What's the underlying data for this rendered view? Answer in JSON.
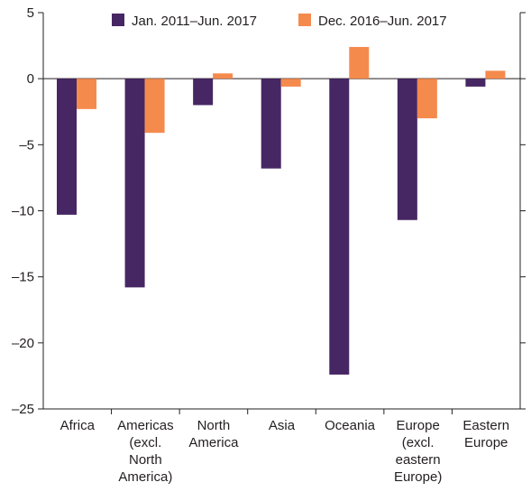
{
  "chart_data": {
    "type": "bar",
    "title": "",
    "xlabel": "",
    "ylabel": "",
    "ylim": [
      -25,
      5
    ],
    "yticks": [
      5,
      0,
      -5,
      -10,
      -15,
      -20,
      -25
    ],
    "ytick_labels": [
      "5",
      "0",
      "–5",
      "–10",
      "–15",
      "–20",
      "–25"
    ],
    "grid": false,
    "legend_position": "top",
    "categories": [
      [
        "Africa"
      ],
      [
        "Americas",
        "(excl.",
        "North",
        "America)"
      ],
      [
        "North",
        "America"
      ],
      [
        "Asia"
      ],
      [
        "Oceania"
      ],
      [
        "Europe",
        "(excl.",
        "eastern",
        "Europe)"
      ],
      [
        "Eastern",
        "Europe"
      ]
    ],
    "series": [
      {
        "name": "Jan. 2011–Jun. 2017",
        "color": "#472763",
        "values": [
          -10.3,
          -15.8,
          -2.0,
          -6.8,
          -22.4,
          -10.7,
          -0.6
        ]
      },
      {
        "name": "Dec. 2016–Jun. 2017",
        "color": "#f58a4d",
        "values": [
          -2.3,
          -4.1,
          0.4,
          -0.6,
          2.4,
          -3.0,
          0.6
        ]
      }
    ]
  }
}
